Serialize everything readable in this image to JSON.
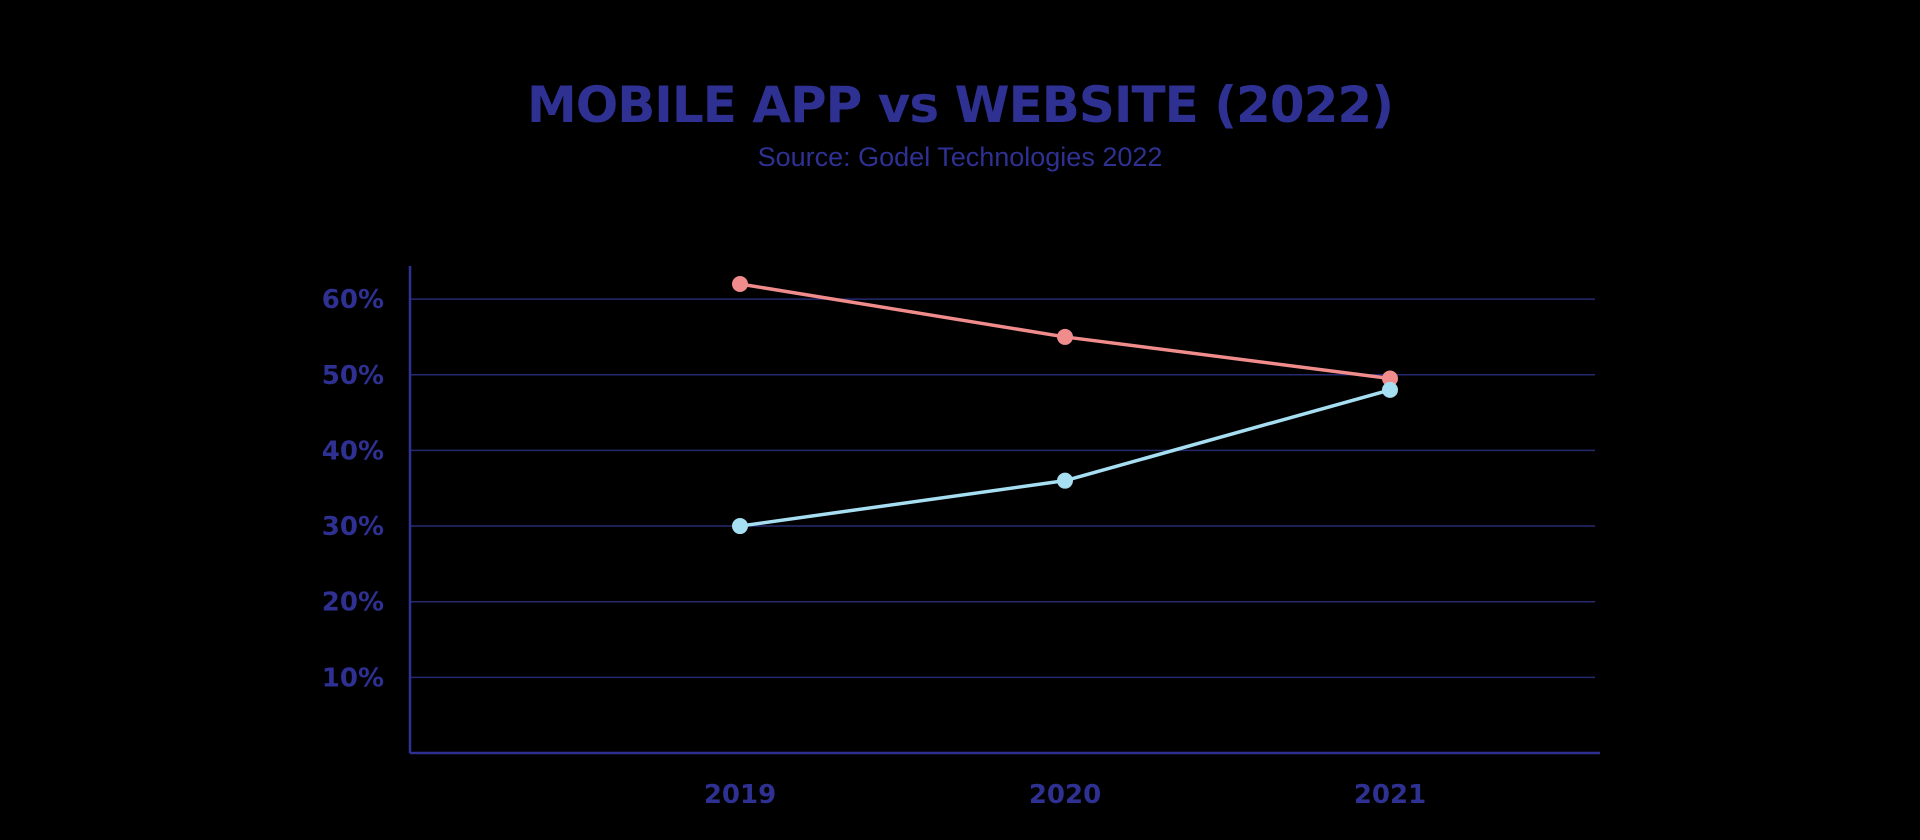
{
  "colors": {
    "text": "#2e3192",
    "axis": "#2e3192",
    "grid": "#252a6e",
    "series_1": "#f08c8c",
    "series_2": "#a6def2",
    "background": "#000000"
  },
  "chart_data": {
    "type": "line",
    "title": "MOBILE APP vs WEBSITE (2022)",
    "subtitle": "Source: Godel Technologies 2022",
    "xlabel": "",
    "ylabel": "",
    "x": [
      "2019",
      "2020",
      "2021"
    ],
    "y_ticks": [
      10,
      20,
      30,
      40,
      50,
      60
    ],
    "y_tick_labels": [
      "10%",
      "20%",
      "30%",
      "40%",
      "50%",
      "60%"
    ],
    "ylim": [
      0,
      64
    ],
    "grid": true,
    "legend": "none",
    "series": [
      {
        "values": [
          62,
          55,
          49.5
        ]
      },
      {
        "values": [
          30,
          36,
          48
        ]
      }
    ]
  }
}
